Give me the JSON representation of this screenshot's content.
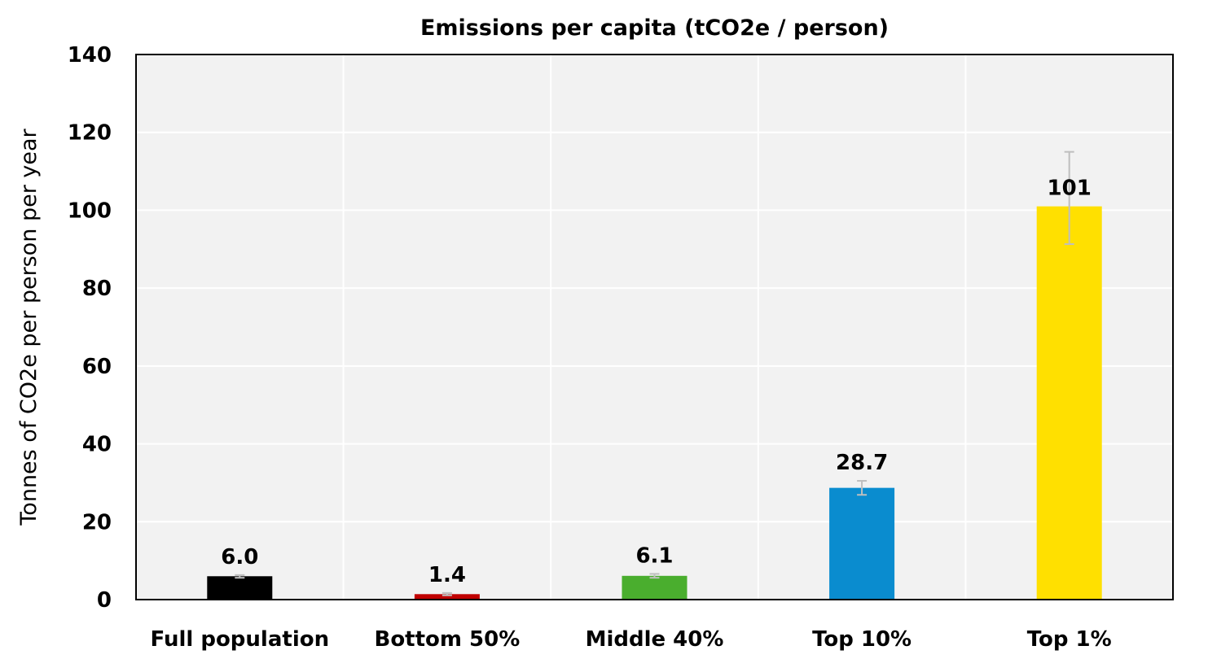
{
  "chart_data": {
    "type": "bar",
    "title": "Emissions per capita (tCO2e / person)",
    "ylabel": "Tonnes of CO2e per person per year",
    "xlabel": "",
    "ylim": [
      0,
      140
    ],
    "yticks": [
      0,
      20,
      40,
      60,
      80,
      100,
      120,
      140
    ],
    "ytick_labels": [
      "0",
      "20",
      "40",
      "60",
      "80",
      "100",
      "120",
      "140"
    ],
    "grid": true,
    "legend": "none",
    "categories": [
      "Full population",
      "Bottom 50%",
      "Middle 40%",
      "Top 10%",
      "Top 1%"
    ],
    "values": [
      6.0,
      1.4,
      6.1,
      28.7,
      101
    ],
    "data_labels": [
      "6.0",
      "1.4",
      "6.1",
      "28.7",
      "101"
    ],
    "error_low": [
      5.6,
      1.1,
      5.6,
      26.9,
      91.3
    ],
    "error_high": [
      6.3,
      1.7,
      6.6,
      30.5,
      115
    ],
    "colors": [
      "#000000",
      "#c00000",
      "#4aae2e",
      "#0a8ccf",
      "#ffe000"
    ],
    "plot_background": "#f2f2f2",
    "gridline_color": "#ffffff",
    "error_bar_color": "#bfbfbf"
  }
}
